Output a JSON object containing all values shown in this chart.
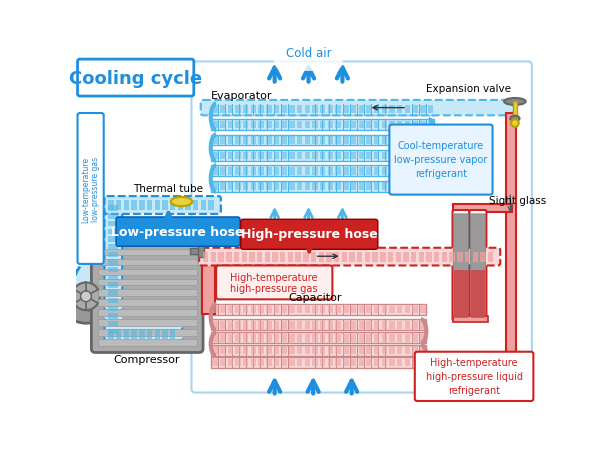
{
  "bg": "#ffffff",
  "blue": "#1e8fdf",
  "blue2": "#4db8e8",
  "lblue": "#c8e8f8",
  "lblue2": "#a8d8f0",
  "red": "#cc2222",
  "lred": "#f0a0a0",
  "lred2": "#f8d8d8",
  "gray1": "#aaaaaa",
  "gray2": "#888888",
  "gray3": "#666666",
  "gray4": "#cccccc",
  "yellow": "#e8d040",
  "yellow2": "#b8a000",
  "labels": {
    "title": "Cooling cycle",
    "cold_air": "Cold air",
    "evaporator": "Evaporator",
    "expansion_valve": "Expansion valve",
    "cool_temp": "Cool-temperature\nlow-pressure vapor\nrefrigerant",
    "thermal_tube": "Thermal tube",
    "low_press_hose": "Low-pressure hose",
    "low_temp_gas": "Low-temperature\nlow-pressure gas",
    "high_press_hose": "High-pressure hose",
    "high_temp_gas": "High-temperature\nhigh-pressure gas",
    "capacitor": "Capacitor",
    "compressor": "Compressor",
    "sight_glass": "Sight glass",
    "high_temp_liquid": "High-temperature\nhigh-pressure liquid\nrefrigerant"
  }
}
